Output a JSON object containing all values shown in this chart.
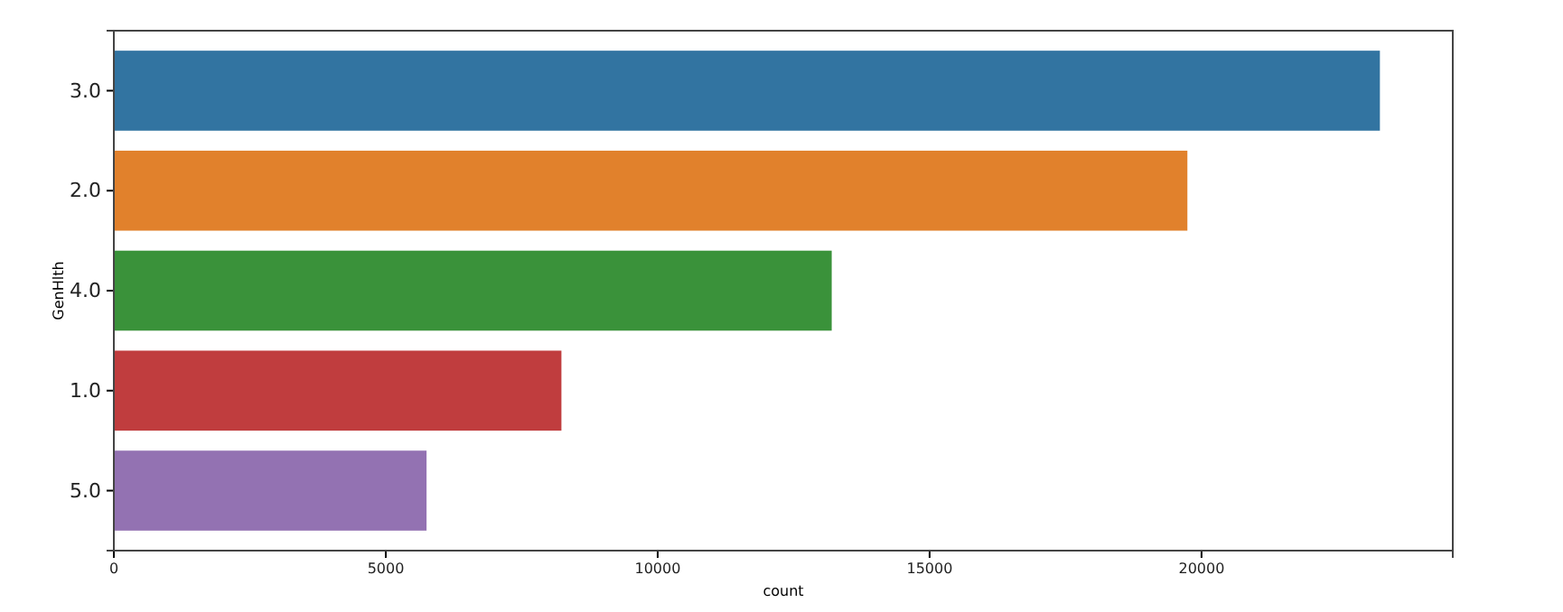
{
  "chart_data": {
    "type": "bar",
    "orientation": "horizontal",
    "xlabel": "count",
    "ylabel": "GenHlth",
    "categories": [
      "3.0",
      "2.0",
      "4.0",
      "1.0",
      "5.0"
    ],
    "values": [
      23280,
      19740,
      13200,
      8230,
      5750
    ],
    "colors": [
      "#3274a1",
      "#e1812c",
      "#3a923a",
      "#c03d3e",
      "#9372b2"
    ],
    "xlim": [
      0,
      24620
    ],
    "xticks": [
      0,
      5000,
      10000,
      15000,
      20000
    ],
    "grid": false
  }
}
